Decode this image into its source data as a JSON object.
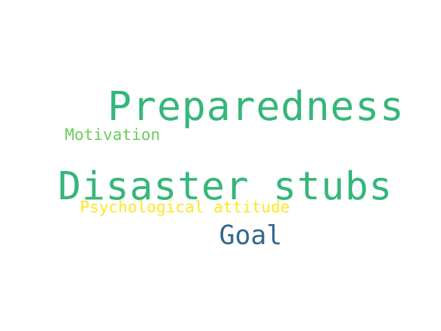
{
  "words": [
    {
      "text": "Preparedness",
      "color": "#35b779"
    },
    {
      "text": "Motivation",
      "color": "#6ccd5a"
    },
    {
      "text": "Disaster stubs",
      "color": "#35b779"
    },
    {
      "text": "Psychological attitude",
      "color": "#fde725"
    },
    {
      "text": "Goal",
      "color": "#31688e"
    }
  ]
}
